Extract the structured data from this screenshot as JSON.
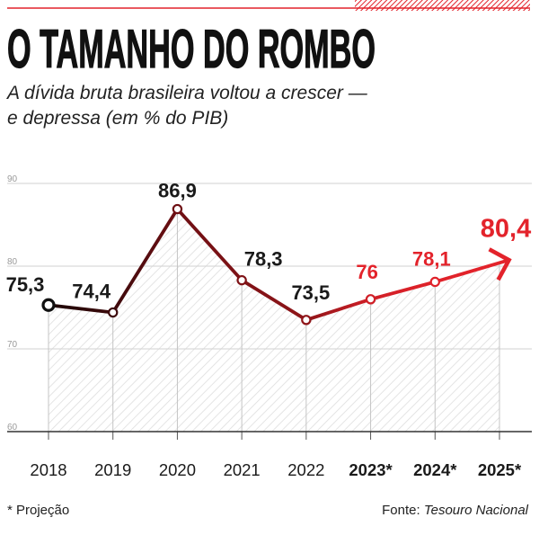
{
  "colors": {
    "accent": "#e3232b",
    "historical_line": "#6e0f13",
    "text": "#1a1a1a",
    "gridline": "#d2d2d2"
  },
  "chart_data": {
    "type": "line",
    "title": "O TAMANHO DO ROMBO",
    "subtitle": [
      "A dívida bruta brasileira voltou a crescer —",
      "e depressa (em % do PIB)"
    ],
    "categories": [
      "2018",
      "2019",
      "2020",
      "2021",
      "2022",
      "2023*",
      "2024*",
      "2025*"
    ],
    "values": [
      75.3,
      74.4,
      86.9,
      78.3,
      73.5,
      76,
      78.1,
      80.4
    ],
    "data_labels": [
      "75,3",
      "74,4",
      "86,9",
      "78,3",
      "73,5",
      "76",
      "78,1",
      "80,4"
    ],
    "projected": [
      false,
      false,
      false,
      false,
      false,
      true,
      true,
      true
    ],
    "ylim": [
      60,
      90
    ],
    "yticks": [
      60,
      70,
      80,
      90
    ],
    "grid": true,
    "legend": "none"
  },
  "footer": {
    "footnote": "* Projeção",
    "source_label": "Fonte:",
    "source": "Tesouro Nacional"
  }
}
